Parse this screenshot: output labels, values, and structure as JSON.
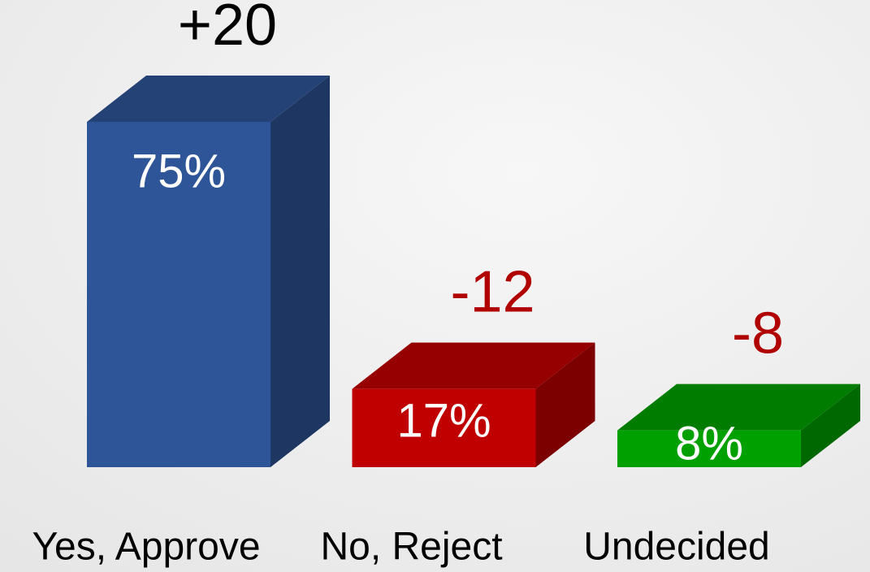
{
  "chart_data": {
    "type": "bar3d",
    "categories": [
      "Yes, Approve",
      "No, Reject",
      "Undecided"
    ],
    "values": [
      75,
      17,
      8
    ],
    "value_labels": [
      "75%",
      "17%",
      "8%"
    ],
    "colors": [
      "#2e5597",
      "#c00000",
      "#00a000"
    ],
    "change_labels": [
      "+20",
      "-12",
      "-8"
    ],
    "change_colors": [
      "#000000",
      "#b00000",
      "#b00000"
    ]
  }
}
